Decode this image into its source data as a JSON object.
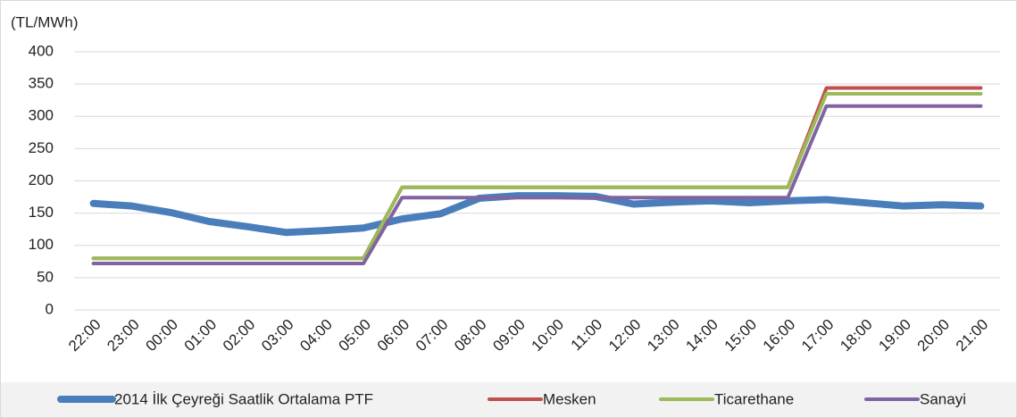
{
  "chart_data": {
    "type": "line",
    "y_label": "(TL/MWh)",
    "categories": [
      "22:00",
      "23:00",
      "00:00",
      "01:00",
      "02:00",
      "03:00",
      "04:00",
      "05:00",
      "06:00",
      "07:00",
      "08:00",
      "09:00",
      "10:00",
      "11:00",
      "12:00",
      "13:00",
      "14:00",
      "15:00",
      "16:00",
      "17:00",
      "18:00",
      "19:00",
      "20:00",
      "21:00"
    ],
    "series": [
      {
        "name": "2014 İlk Çeyreği Saatlik Ortalama PTF",
        "color": "#4a7ebb",
        "values": [
          165,
          161,
          151,
          137,
          129,
          120,
          123,
          127,
          141,
          149,
          173,
          177,
          177,
          176,
          164,
          167,
          169,
          166,
          169,
          171,
          166,
          161,
          163,
          161
        ]
      },
      {
        "name": "Mesken",
        "color": "#c0504d",
        "values": [
          80,
          80,
          80,
          80,
          80,
          80,
          80,
          80,
          190,
          190,
          190,
          190,
          190,
          190,
          190,
          190,
          190,
          190,
          190,
          344,
          344,
          344,
          344,
          344
        ]
      },
      {
        "name": "Ticarethane",
        "color": "#9bbb59",
        "values": [
          80,
          80,
          80,
          80,
          80,
          80,
          80,
          80,
          190,
          190,
          190,
          190,
          190,
          190,
          190,
          190,
          190,
          190,
          190,
          335,
          335,
          335,
          335,
          335
        ]
      },
      {
        "name": "Sanayi",
        "color": "#8064a2",
        "values": [
          72,
          72,
          72,
          72,
          72,
          72,
          72,
          72,
          174,
          174,
          174,
          174,
          174,
          174,
          174,
          174,
          174,
          174,
          174,
          316,
          316,
          316,
          316,
          316
        ]
      }
    ],
    "ylim": [
      0,
      400
    ],
    "yticks": [
      0,
      50,
      100,
      150,
      200,
      250,
      300,
      350,
      400
    ],
    "grid": true,
    "legend": "bottom"
  }
}
